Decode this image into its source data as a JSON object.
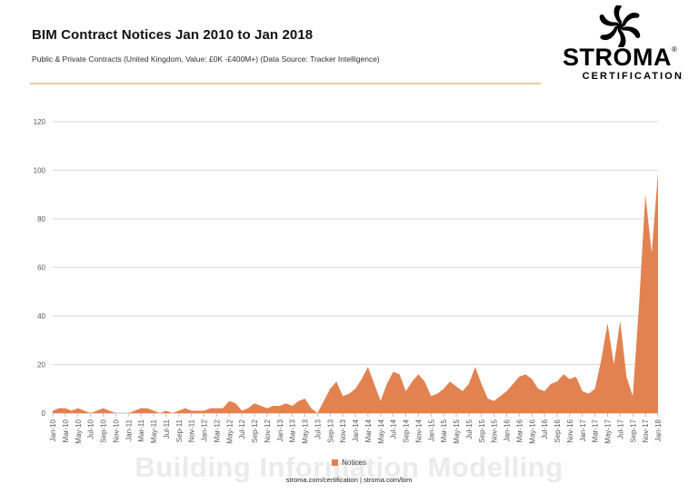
{
  "header": {
    "title": "BIM Contract Notices Jan 2010 to Jan 2018",
    "subtitle": "Public & Private Contracts (United Kingdom, Value: £0K -£400M+) (Data Source: Tracker Intelligence)"
  },
  "logo": {
    "brand": "STROMA",
    "registered": "®",
    "tagline": "CERTIFICATION"
  },
  "legend": {
    "label": "Notices"
  },
  "footer": {
    "links": "stroma.com/certification | stroma.com/bim"
  },
  "watermark": "Building Information Modelling",
  "colors": {
    "area": "#e28250",
    "grid": "#d9d9d9",
    "axis_line": "#c0c0c0",
    "tick": "#bfbfbf",
    "axis_text": "#595959",
    "divider": "#eacba4",
    "watermark": "#ebebeb"
  },
  "chart_data": {
    "type": "area",
    "title": "BIM Contract Notices Jan 2010 to Jan 2018",
    "xlabel": "",
    "ylabel": "",
    "ylim": [
      0,
      120
    ],
    "yticks": [
      0,
      20,
      40,
      60,
      80,
      100,
      120
    ],
    "grid": "horizontal",
    "legend_position": "bottom",
    "xtick_every": 2,
    "x": [
      "Jan-10",
      "Feb-10",
      "Mar-10",
      "Apr-10",
      "May-10",
      "Jun-10",
      "Jul-10",
      "Aug-10",
      "Sep-10",
      "Oct-10",
      "Nov-10",
      "Dec-10",
      "Jan-11",
      "Feb-11",
      "Mar-11",
      "Apr-11",
      "May-11",
      "Jun-11",
      "Jul-11",
      "Aug-11",
      "Sep-11",
      "Oct-11",
      "Nov-11",
      "Dec-11",
      "Jan-12",
      "Feb-12",
      "Mar-12",
      "Apr-12",
      "May-12",
      "Jun-12",
      "Jul-12",
      "Aug-12",
      "Sep-12",
      "Oct-12",
      "Nov-12",
      "Dec-12",
      "Jan-13",
      "Feb-13",
      "Mar-13",
      "Apr-13",
      "May-13",
      "Jun-13",
      "Jul-13",
      "Aug-13",
      "Sep-13",
      "Oct-13",
      "Nov-13",
      "Dec-13",
      "Jan-14",
      "Feb-14",
      "Mar-14",
      "Apr-14",
      "May-14",
      "Jun-14",
      "Jul-14",
      "Aug-14",
      "Sep-14",
      "Oct-14",
      "Nov-14",
      "Dec-14",
      "Jan-15",
      "Feb-15",
      "Mar-15",
      "Apr-15",
      "May-15",
      "Jun-15",
      "Jul-15",
      "Aug-15",
      "Sep-15",
      "Oct-15",
      "Nov-15",
      "Dec-15",
      "Jan-16",
      "Feb-16",
      "Mar-16",
      "Apr-16",
      "May-16",
      "Jun-16",
      "Jul-16",
      "Aug-16",
      "Sep-16",
      "Oct-16",
      "Nov-16",
      "Dec-16",
      "Jan-17",
      "Feb-17",
      "Mar-17",
      "Apr-17",
      "May-17",
      "Jun-17",
      "Jul-17",
      "Aug-17",
      "Sep-17",
      "Oct-17",
      "Nov-17",
      "Dec-17",
      "Jan-18"
    ],
    "series": [
      {
        "name": "Notices",
        "values": [
          1,
          2,
          2,
          1,
          2,
          1,
          0,
          1,
          2,
          1,
          0,
          0,
          0,
          1,
          2,
          2,
          1,
          0,
          1,
          0,
          1,
          2,
          1,
          1,
          1,
          2,
          2,
          2,
          5,
          4,
          1,
          2,
          4,
          3,
          2,
          3,
          3,
          4,
          3,
          5,
          6,
          2,
          0,
          5,
          10,
          13,
          7,
          8,
          10,
          14,
          19,
          12,
          5,
          12,
          17,
          16,
          9,
          13,
          16,
          13,
          7,
          8,
          10,
          13,
          11,
          9,
          12,
          19,
          12,
          6,
          5,
          7,
          9,
          12,
          15,
          16,
          14,
          10,
          9,
          12,
          13,
          16,
          14,
          15,
          9,
          8,
          10,
          22,
          37,
          20,
          38,
          15,
          7,
          45,
          90,
          66,
          99
        ]
      }
    ]
  }
}
